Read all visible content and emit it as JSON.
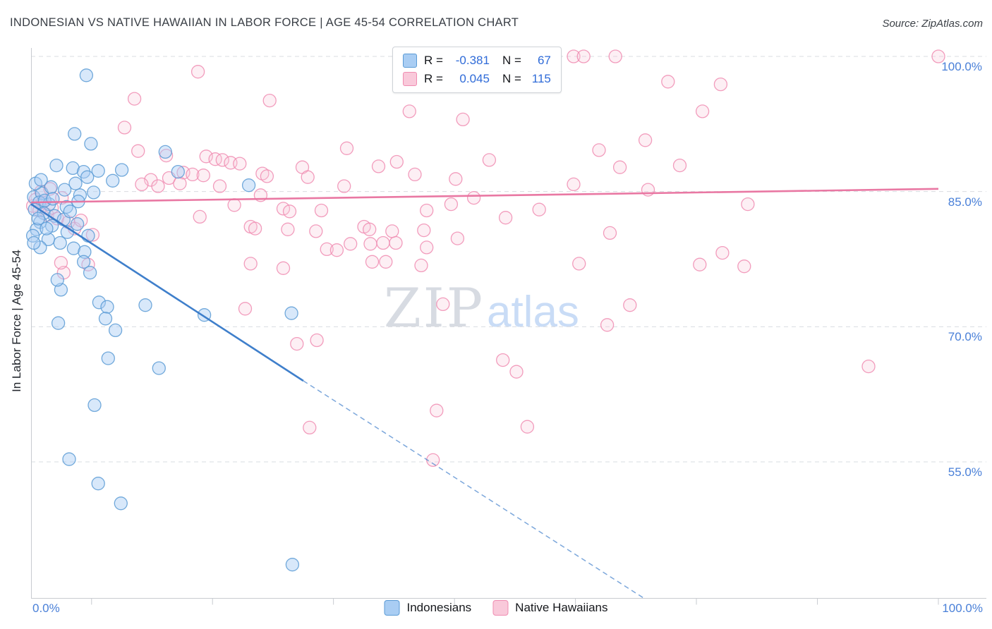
{
  "header": {
    "title": "INDONESIAN VS NATIVE HAWAIIAN IN LABOR FORCE | AGE 45-54 CORRELATION CHART",
    "source": "Source: ZipAtlas.com"
  },
  "watermark": {
    "zip": "ZIP",
    "atlas": "atlas"
  },
  "legend_box": {
    "rows": [
      {
        "series": "Indonesians",
        "r_label": "R =",
        "r_value": "-0.381",
        "n_label": "N =",
        "n_value": "67"
      },
      {
        "series": "Native Hawaiians",
        "r_label": "R =",
        "r_value": "0.045",
        "n_label": "N =",
        "n_value": "115"
      }
    ]
  },
  "bottom_legend": {
    "items": [
      {
        "label": "Indonesians"
      },
      {
        "label": "Native Hawaiians"
      }
    ]
  },
  "colors": {
    "axis_label_blue": "#4a80d8",
    "stat_value_blue": "#2f6bd8",
    "gridline": "#d9dce1",
    "axis_line": "#c8cbd0"
  },
  "chart_data": {
    "type": "scatter",
    "title": "Indonesian vs Native Hawaiian In Labor Force | Age 45-54",
    "x_axis": {
      "label": "",
      "min": 0,
      "max": 100,
      "unit": "%",
      "min_label": "0.0%",
      "max_label": "100.0%",
      "tick_positions": [
        6.67,
        20,
        33.33,
        46.67,
        60,
        73.33,
        86.67,
        100
      ]
    },
    "y_axis": {
      "label": "In Labor Force | Age 45-54",
      "min": 40,
      "max": 101,
      "unit": "%",
      "ticks": [
        {
          "value": 100,
          "label": "100.0%"
        },
        {
          "value": 85,
          "label": "85.0%"
        },
        {
          "value": 70,
          "label": "70.0%"
        },
        {
          "value": 55,
          "label": "55.0%"
        }
      ],
      "grid": true
    },
    "series": [
      {
        "name": "Indonesians",
        "R": -0.381,
        "N": 67,
        "color_fill": "#a9cdf3",
        "color_stroke": "#5b9bd5",
        "fill_opacity": 0.45,
        "points": [
          [
            6.1,
            97.9
          ],
          [
            4.8,
            91.4
          ],
          [
            6.6,
            90.3
          ],
          [
            14.8,
            89.4
          ],
          [
            2.8,
            87.9
          ],
          [
            4.6,
            87.6
          ],
          [
            5.8,
            87.2
          ],
          [
            7.4,
            87.3
          ],
          [
            10.0,
            87.4
          ],
          [
            16.2,
            87.2
          ],
          [
            4.9,
            85.9
          ],
          [
            9.0,
            86.2
          ],
          [
            24.0,
            85.7
          ],
          [
            3.7,
            85.2
          ],
          [
            5.4,
            84.6
          ],
          [
            0.3,
            84.4
          ],
          [
            1.2,
            84.8
          ],
          [
            0.9,
            83.8
          ],
          [
            2.0,
            83.6
          ],
          [
            0.4,
            83.0
          ],
          [
            1.4,
            82.6
          ],
          [
            2.6,
            82.3
          ],
          [
            3.6,
            81.9
          ],
          [
            1.0,
            81.6
          ],
          [
            2.3,
            81.2
          ],
          [
            0.6,
            80.8
          ],
          [
            4.0,
            80.5
          ],
          [
            5.1,
            81.4
          ],
          [
            6.3,
            80.1
          ],
          [
            1.9,
            79.7
          ],
          [
            3.2,
            79.3
          ],
          [
            1.0,
            78.8
          ],
          [
            4.7,
            78.7
          ],
          [
            5.9,
            78.3
          ],
          [
            0.2,
            80.1
          ],
          [
            0.3,
            79.3
          ],
          [
            5.8,
            77.2
          ],
          [
            6.5,
            76.0
          ],
          [
            3.3,
            74.1
          ],
          [
            7.5,
            72.7
          ],
          [
            8.4,
            72.2
          ],
          [
            12.6,
            72.4
          ],
          [
            3.0,
            70.4
          ],
          [
            8.2,
            70.9
          ],
          [
            9.3,
            69.6
          ],
          [
            19.1,
            71.3
          ],
          [
            28.7,
            71.5
          ],
          [
            8.5,
            66.5
          ],
          [
            14.1,
            65.4
          ],
          [
            2.9,
            75.2
          ],
          [
            1.5,
            84.0
          ],
          [
            2.2,
            85.5
          ],
          [
            0.8,
            82.0
          ],
          [
            1.7,
            80.9
          ],
          [
            3.9,
            83.3
          ],
          [
            4.3,
            82.8
          ],
          [
            5.2,
            83.9
          ],
          [
            6.9,
            84.9
          ],
          [
            0.5,
            85.9
          ],
          [
            1.1,
            86.3
          ],
          [
            2.4,
            84.2
          ],
          [
            7.0,
            61.3
          ],
          [
            4.2,
            55.3
          ],
          [
            7.4,
            52.6
          ],
          [
            9.9,
            50.4
          ],
          [
            28.8,
            43.6
          ],
          [
            6.2,
            86.6
          ]
        ]
      },
      {
        "name": "Native Hawaiians",
        "R": 0.045,
        "N": 115,
        "color_fill": "#f9c9da",
        "color_stroke": "#f08cb1",
        "fill_opacity": 0.3,
        "points": [
          [
            18.4,
            98.3
          ],
          [
            41.9,
            100.0
          ],
          [
            59.8,
            100.0
          ],
          [
            60.9,
            100.0
          ],
          [
            64.4,
            100.0
          ],
          [
            100.0,
            100.0
          ],
          [
            70.2,
            97.2
          ],
          [
            76.0,
            96.9
          ],
          [
            11.4,
            95.3
          ],
          [
            26.3,
            95.1
          ],
          [
            41.7,
            93.9
          ],
          [
            74.0,
            93.9
          ],
          [
            47.6,
            93.0
          ],
          [
            11.8,
            89.5
          ],
          [
            14.9,
            89.0
          ],
          [
            34.8,
            89.8
          ],
          [
            67.7,
            90.7
          ],
          [
            62.6,
            89.6
          ],
          [
            19.3,
            88.9
          ],
          [
            20.3,
            88.6
          ],
          [
            21.1,
            88.5
          ],
          [
            22.0,
            88.2
          ],
          [
            23.0,
            88.1
          ],
          [
            16.8,
            87.1
          ],
          [
            17.8,
            86.9
          ],
          [
            19.0,
            86.8
          ],
          [
            25.5,
            87.0
          ],
          [
            26.0,
            86.7
          ],
          [
            29.9,
            87.7
          ],
          [
            30.5,
            86.6
          ],
          [
            38.3,
            87.8
          ],
          [
            40.3,
            88.3
          ],
          [
            42.3,
            86.9
          ],
          [
            50.5,
            88.5
          ],
          [
            64.9,
            87.7
          ],
          [
            15.2,
            86.5
          ],
          [
            13.2,
            86.3
          ],
          [
            12.2,
            85.8
          ],
          [
            14.0,
            85.6
          ],
          [
            16.4,
            85.9
          ],
          [
            20.8,
            85.6
          ],
          [
            34.5,
            85.6
          ],
          [
            59.8,
            85.8
          ],
          [
            79.0,
            83.6
          ],
          [
            27.8,
            83.1
          ],
          [
            28.5,
            82.8
          ],
          [
            32.0,
            82.9
          ],
          [
            24.2,
            81.1
          ],
          [
            24.7,
            80.9
          ],
          [
            28.3,
            80.8
          ],
          [
            31.4,
            80.6
          ],
          [
            36.7,
            81.1
          ],
          [
            37.3,
            80.8
          ],
          [
            39.8,
            80.6
          ],
          [
            43.6,
            82.9
          ],
          [
            46.3,
            83.6
          ],
          [
            40.2,
            79.3
          ],
          [
            43.3,
            80.7
          ],
          [
            32.6,
            78.6
          ],
          [
            33.7,
            78.5
          ],
          [
            35.2,
            79.2
          ],
          [
            37.4,
            79.2
          ],
          [
            38.8,
            79.3
          ],
          [
            43.6,
            78.8
          ],
          [
            47.0,
            79.8
          ],
          [
            60.4,
            77.0
          ],
          [
            63.8,
            80.4
          ],
          [
            3.6,
            76.0
          ],
          [
            6.3,
            76.9
          ],
          [
            24.2,
            77.0
          ],
          [
            27.8,
            76.5
          ],
          [
            43.0,
            76.8
          ],
          [
            37.6,
            77.2
          ],
          [
            39.1,
            77.2
          ],
          [
            73.7,
            76.9
          ],
          [
            78.6,
            76.7
          ],
          [
            23.6,
            72.0
          ],
          [
            29.3,
            68.1
          ],
          [
            31.5,
            68.5
          ],
          [
            45.4,
            72.5
          ],
          [
            66.0,
            72.4
          ],
          [
            63.5,
            70.2
          ],
          [
            52.0,
            66.3
          ],
          [
            53.5,
            65.0
          ],
          [
            92.3,
            65.6
          ],
          [
            44.7,
            60.7
          ],
          [
            54.7,
            58.9
          ],
          [
            30.7,
            58.8
          ],
          [
            44.3,
            55.2
          ],
          [
            0.2,
            83.4
          ],
          [
            0.5,
            84.1
          ],
          [
            0.9,
            82.9
          ],
          [
            1.3,
            83.8
          ],
          [
            1.8,
            82.4
          ],
          [
            2.3,
            83.2
          ],
          [
            2.9,
            82.0
          ],
          [
            3.4,
            84.3
          ],
          [
            4.1,
            81.6
          ],
          [
            4.8,
            80.9
          ],
          [
            5.5,
            81.8
          ],
          [
            3.3,
            77.1
          ],
          [
            1.1,
            85.0
          ],
          [
            2.1,
            85.3
          ],
          [
            6.8,
            80.2
          ],
          [
            10.3,
            92.1
          ],
          [
            48.8,
            84.3
          ],
          [
            52.3,
            82.1
          ],
          [
            56.0,
            83.0
          ],
          [
            68.0,
            85.2
          ],
          [
            71.5,
            87.9
          ],
          [
            76.2,
            78.2
          ],
          [
            46.8,
            86.4
          ],
          [
            25.3,
            84.6
          ],
          [
            22.4,
            83.5
          ],
          [
            18.6,
            82.2
          ]
        ]
      }
    ],
    "trend_lines": [
      {
        "series": "Indonesians",
        "color": "#3578c8",
        "solid": [
          [
            0,
            83.6
          ],
          [
            30,
            64.0
          ]
        ],
        "dashed": [
          [
            30,
            64.0
          ],
          [
            67.5,
            39.9
          ]
        ]
      },
      {
        "series": "Native Hawaiians",
        "color": "#e8719e",
        "solid": [
          [
            0,
            83.8
          ],
          [
            100,
            85.3
          ]
        ]
      }
    ],
    "legend_position": "bottom"
  }
}
